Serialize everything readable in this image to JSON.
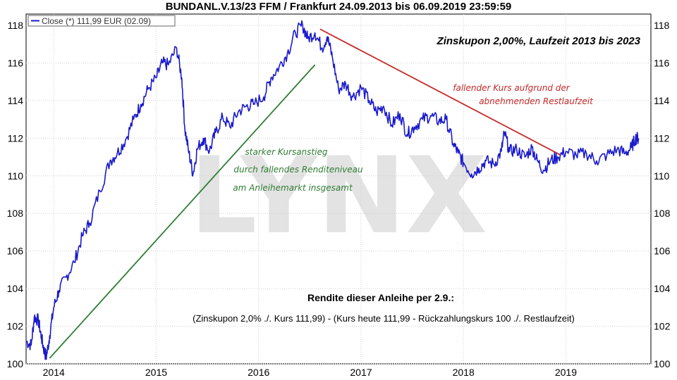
{
  "chart_data": {
    "type": "line",
    "title": "BUNDANL.V.13/23 FFM / Frankfurt 24.09.2013 bis 06.09.2019 23:59:59",
    "legend": "Close (*) 111,99 EUR (02.09)",
    "legend_placement": "top-left",
    "watermark": "LYNX",
    "x_ticks": [
      "2014",
      "2015",
      "2016",
      "2017",
      "2018",
      "2019"
    ],
    "y_ticks": [
      "100",
      "102",
      "104",
      "106",
      "108",
      "110",
      "112",
      "114",
      "116",
      "118"
    ],
    "ylim": [
      100,
      118.6
    ],
    "xlim": [
      2013.73,
      2019.83
    ],
    "grid": true,
    "series": [
      {
        "values": [
          [
            2013.73,
            101.2
          ],
          [
            2013.78,
            101.0
          ],
          [
            2013.81,
            102.5
          ],
          [
            2013.85,
            102.3
          ],
          [
            2013.88,
            101.4
          ],
          [
            2013.91,
            100.6
          ],
          [
            2013.93,
            100.4
          ],
          [
            2013.96,
            101.5
          ],
          [
            2014.0,
            103.0
          ],
          [
            2014.05,
            103.9
          ],
          [
            2014.12,
            104.6
          ],
          [
            2014.2,
            105.4
          ],
          [
            2014.28,
            106.8
          ],
          [
            2014.35,
            107.5
          ],
          [
            2014.45,
            109.2
          ],
          [
            2014.55,
            110.8
          ],
          [
            2014.62,
            111.2
          ],
          [
            2014.7,
            111.9
          ],
          [
            2014.78,
            113.0
          ],
          [
            2014.85,
            113.8
          ],
          [
            2014.92,
            114.6
          ],
          [
            2015.0,
            115.2
          ],
          [
            2015.06,
            116.0
          ],
          [
            2015.12,
            115.9
          ],
          [
            2015.2,
            116.8
          ],
          [
            2015.25,
            115.2
          ],
          [
            2015.28,
            112.5
          ],
          [
            2015.32,
            111.2
          ],
          [
            2015.36,
            110.1
          ],
          [
            2015.4,
            111.4
          ],
          [
            2015.46,
            112.0
          ],
          [
            2015.52,
            111.3
          ],
          [
            2015.58,
            112.3
          ],
          [
            2015.65,
            113.1
          ],
          [
            2015.72,
            112.6
          ],
          [
            2015.8,
            113.4
          ],
          [
            2015.88,
            113.7
          ],
          [
            2015.95,
            113.8
          ],
          [
            2016.05,
            114.2
          ],
          [
            2016.12,
            115.2
          ],
          [
            2016.2,
            115.8
          ],
          [
            2016.28,
            116.5
          ],
          [
            2016.36,
            117.6
          ],
          [
            2016.43,
            118.0
          ],
          [
            2016.48,
            117.3
          ],
          [
            2016.55,
            117.6
          ],
          [
            2016.62,
            116.8
          ],
          [
            2016.67,
            117.4
          ],
          [
            2016.72,
            116.3
          ],
          [
            2016.78,
            114.6
          ],
          [
            2016.85,
            114.9
          ],
          [
            2016.92,
            114.2
          ],
          [
            2017.0,
            114.7
          ],
          [
            2017.08,
            114.0
          ],
          [
            2017.15,
            113.4
          ],
          [
            2017.22,
            113.7
          ],
          [
            2017.3,
            112.7
          ],
          [
            2017.38,
            113.3
          ],
          [
            2017.45,
            112.2
          ],
          [
            2017.52,
            112.6
          ],
          [
            2017.6,
            113.0
          ],
          [
            2017.68,
            113.2
          ],
          [
            2017.76,
            112.9
          ],
          [
            2017.83,
            113.0
          ],
          [
            2017.9,
            111.7
          ],
          [
            2017.95,
            111.2
          ],
          [
            2018.0,
            110.7
          ],
          [
            2018.08,
            110.1
          ],
          [
            2018.15,
            110.4
          ],
          [
            2018.22,
            110.8
          ],
          [
            2018.3,
            110.6
          ],
          [
            2018.37,
            111.3
          ],
          [
            2018.4,
            112.3
          ],
          [
            2018.45,
            111.3
          ],
          [
            2018.52,
            111.4
          ],
          [
            2018.6,
            111.0
          ],
          [
            2018.67,
            111.5
          ],
          [
            2018.72,
            110.8
          ],
          [
            2018.78,
            110.3
          ],
          [
            2018.85,
            110.8
          ],
          [
            2018.92,
            111.0
          ],
          [
            2019.0,
            111.3
          ],
          [
            2019.1,
            111.1
          ],
          [
            2019.2,
            111.2
          ],
          [
            2019.3,
            110.8
          ],
          [
            2019.4,
            111.1
          ],
          [
            2019.5,
            111.4
          ],
          [
            2019.58,
            111.2
          ],
          [
            2019.64,
            111.5
          ],
          [
            2019.68,
            112.0
          ],
          [
            2019.71,
            111.99
          ]
        ]
      }
    ],
    "trendlines": [
      {
        "color": "#2e7d32",
        "points": [
          [
            2013.96,
            100.3
          ],
          [
            2016.55,
            115.9
          ]
        ]
      },
      {
        "color": "#c62828",
        "points": [
          [
            2016.6,
            117.8
          ],
          [
            2018.95,
            111.1
          ]
        ]
      }
    ],
    "annotations": {
      "coupon": "Zinskupon 2,00%, Laufzeit 2013 bis 2023",
      "red_line1": "fallender Kurs aufgrund der",
      "red_line2": "abnehmenden Restlaufzeit",
      "green_line1": "starker Kursanstieg",
      "green_line2": "durch fallendes Renditeniveau",
      "green_line3": "am Anleihemarkt insgesamt",
      "yield_title": "Rendite dieser Anleihe per 2.9.:",
      "yield_formula": "(Zinskupon 2,0% ./. Kurs 111,99) - (Kurs heute 111,99 - Rückzahlungskurs 100 ./. Restlaufzeit)"
    },
    "colors": {
      "line": "#1a1acc",
      "grid": "#cfcfcf",
      "frame": "#000000"
    }
  }
}
